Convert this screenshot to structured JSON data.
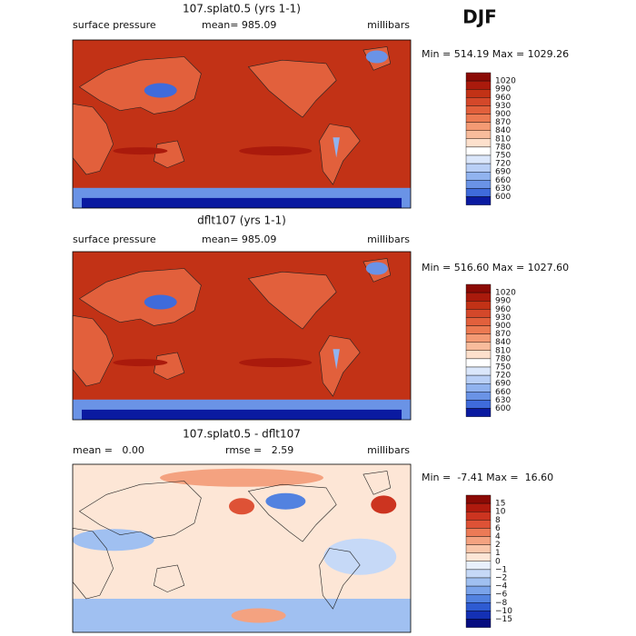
{
  "header": {
    "title": "DJF"
  },
  "panels": [
    {
      "title": "107.splat0.5 (yrs 1-1)",
      "left_label": "surface pressure",
      "center_label": "mean= 985.09",
      "units": "millibars",
      "range_label": "Min = 514.19 Max = 1029.26",
      "colorbar": {
        "labels": [
          "1020",
          "990",
          "960",
          "930",
          "900",
          "870",
          "840",
          "810",
          "780",
          "750",
          "720",
          "690",
          "660",
          "630",
          "600"
        ],
        "colors": [
          "#8b0a05",
          "#aa1a0c",
          "#c23216",
          "#d4482a",
          "#e2603c",
          "#ec7a52",
          "#f49a74",
          "#f8bc9c",
          "#fde0cc",
          "#ffffff",
          "#dbe7fb",
          "#b9cff6",
          "#91b3ef",
          "#6a93e6",
          "#3f6bdb",
          "#0a1aa0"
        ]
      }
    },
    {
      "title": "dflt107 (yrs 1-1)",
      "left_label": "surface pressure",
      "center_label": "mean= 985.09",
      "units": "millibars",
      "range_label": "Min = 516.60 Max = 1027.60",
      "colorbar": {
        "labels": [
          "1020",
          "990",
          "960",
          "930",
          "900",
          "870",
          "840",
          "810",
          "780",
          "750",
          "720",
          "690",
          "660",
          "630",
          "600"
        ],
        "colors": [
          "#8b0a05",
          "#aa1a0c",
          "#c23216",
          "#d4482a",
          "#e2603c",
          "#ec7a52",
          "#f49a74",
          "#f8bc9c",
          "#fde0cc",
          "#ffffff",
          "#dbe7fb",
          "#b9cff6",
          "#91b3ef",
          "#6a93e6",
          "#3f6bdb",
          "#0a1aa0"
        ]
      }
    },
    {
      "title": "107.splat0.5 - dflt107",
      "left_label": "mean =   0.00",
      "center_label": "rmse =   2.59",
      "units": "millibars",
      "range_label": "Min =  -7.41 Max =  16.60",
      "colorbar": {
        "labels": [
          "15",
          "10",
          "8",
          "6",
          "4",
          "2",
          "1",
          "0",
          "−1",
          "−2",
          "−4",
          "−6",
          "−8",
          "−10",
          "−15"
        ],
        "colors": [
          "#8b0a05",
          "#b01a0e",
          "#cc3420",
          "#de5236",
          "#ec7a56",
          "#f4a280",
          "#f9c6aa",
          "#fde6d6",
          "#e8f0fc",
          "#c6d9f7",
          "#a0c0f1",
          "#7aa3ea",
          "#5282e0",
          "#2e5bd2",
          "#1430b4",
          "#060c80"
        ]
      }
    }
  ]
}
